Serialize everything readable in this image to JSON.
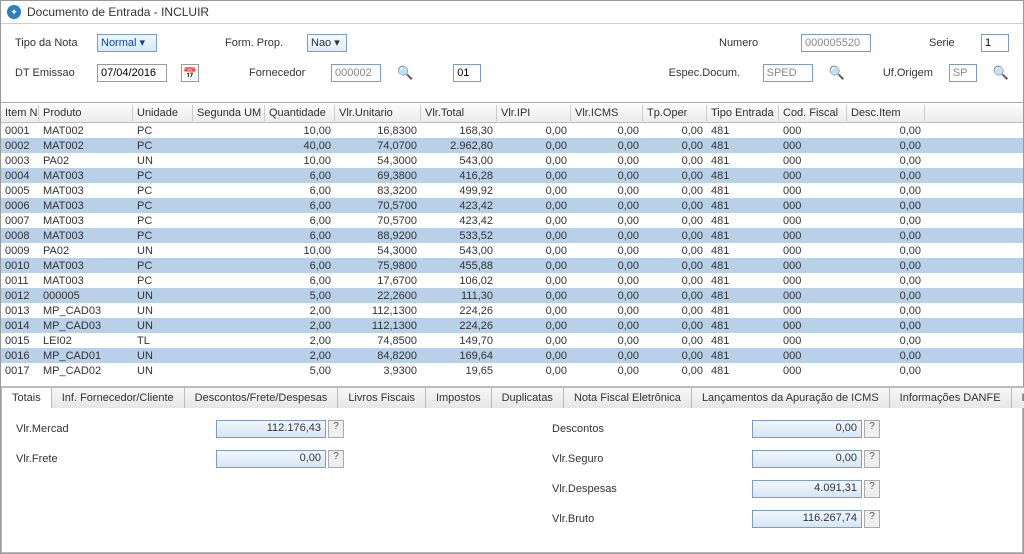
{
  "window": {
    "title": "Documento de Entrada - INCLUIR"
  },
  "form": {
    "tipoNota": {
      "label": "Tipo da Nota",
      "value": "Normal"
    },
    "formProp": {
      "label": "Form. Prop.",
      "value": "Nao"
    },
    "numero": {
      "label": "Numero",
      "value": "000005520"
    },
    "serie": {
      "label": "Serie",
      "value": "1"
    },
    "dtEmissao": {
      "label": "DT Emissao",
      "value": "07/04/2016"
    },
    "fornecedor": {
      "label": "Fornecedor",
      "value": "000002",
      "loja": "01"
    },
    "especDocum": {
      "label": "Espec.Docum.",
      "value": "SPED"
    },
    "ufOrigem": {
      "label": "Uf.Origem",
      "value": "SP"
    }
  },
  "grid": {
    "headers": [
      "Item NF",
      "Produto",
      "Unidade",
      "Segunda UM",
      "Quantidade",
      "Vlr.Unitario",
      "Vlr.Total",
      "Vlr.IPI",
      "Vlr.ICMS",
      "Tp.Oper",
      "Tipo Entrada",
      "Cod. Fiscal",
      "Desc.Item"
    ],
    "rows": [
      [
        "0001",
        "MAT002",
        "PC",
        "",
        "10,00",
        "16,8300",
        "168,30",
        "0,00",
        "0,00",
        "0,00",
        "481",
        "000",
        "0,00"
      ],
      [
        "0002",
        "MAT002",
        "PC",
        "",
        "40,00",
        "74,0700",
        "2.962,80",
        "0,00",
        "0,00",
        "0,00",
        "481",
        "000",
        "0,00"
      ],
      [
        "0003",
        "PA02",
        "UN",
        "",
        "10,00",
        "54,3000",
        "543,00",
        "0,00",
        "0,00",
        "0,00",
        "481",
        "000",
        "0,00"
      ],
      [
        "0004",
        "MAT003",
        "PC",
        "",
        "6,00",
        "69,3800",
        "416,28",
        "0,00",
        "0,00",
        "0,00",
        "481",
        "000",
        "0,00"
      ],
      [
        "0005",
        "MAT003",
        "PC",
        "",
        "6,00",
        "83,3200",
        "499,92",
        "0,00",
        "0,00",
        "0,00",
        "481",
        "000",
        "0,00"
      ],
      [
        "0006",
        "MAT003",
        "PC",
        "",
        "6,00",
        "70,5700",
        "423,42",
        "0,00",
        "0,00",
        "0,00",
        "481",
        "000",
        "0,00"
      ],
      [
        "0007",
        "MAT003",
        "PC",
        "",
        "6,00",
        "70,5700",
        "423,42",
        "0,00",
        "0,00",
        "0,00",
        "481",
        "000",
        "0,00"
      ],
      [
        "0008",
        "MAT003",
        "PC",
        "",
        "6,00",
        "88,9200",
        "533,52",
        "0,00",
        "0,00",
        "0,00",
        "481",
        "000",
        "0,00"
      ],
      [
        "0009",
        "PA02",
        "UN",
        "",
        "10,00",
        "54,3000",
        "543,00",
        "0,00",
        "0,00",
        "0,00",
        "481",
        "000",
        "0,00"
      ],
      [
        "0010",
        "MAT003",
        "PC",
        "",
        "6,00",
        "75,9800",
        "455,88",
        "0,00",
        "0,00",
        "0,00",
        "481",
        "000",
        "0,00"
      ],
      [
        "0011",
        "MAT003",
        "PC",
        "",
        "6,00",
        "17,6700",
        "106,02",
        "0,00",
        "0,00",
        "0,00",
        "481",
        "000",
        "0,00"
      ],
      [
        "0012",
        "000005",
        "UN",
        "",
        "5,00",
        "22,2600",
        "111,30",
        "0,00",
        "0,00",
        "0,00",
        "481",
        "000",
        "0,00"
      ],
      [
        "0013",
        "MP_CAD03",
        "UN",
        "",
        "2,00",
        "112,1300",
        "224,26",
        "0,00",
        "0,00",
        "0,00",
        "481",
        "000",
        "0,00"
      ],
      [
        "0014",
        "MP_CAD03",
        "UN",
        "",
        "2,00",
        "112,1300",
        "224,26",
        "0,00",
        "0,00",
        "0,00",
        "481",
        "000",
        "0,00"
      ],
      [
        "0015",
        "LEI02",
        "TL",
        "",
        "2,00",
        "74,8500",
        "149,70",
        "0,00",
        "0,00",
        "0,00",
        "481",
        "000",
        "0,00"
      ],
      [
        "0016",
        "MP_CAD01",
        "UN",
        "",
        "2,00",
        "84,8200",
        "169,64",
        "0,00",
        "0,00",
        "0,00",
        "481",
        "000",
        "0,00"
      ],
      [
        "0017",
        "MP_CAD02",
        "UN",
        "",
        "5,00",
        "3,9300",
        "19,65",
        "0,00",
        "0,00",
        "0,00",
        "481",
        "000",
        "0,00"
      ]
    ],
    "numericCols": [
      4,
      5,
      6,
      7,
      8,
      9,
      12
    ]
  },
  "tabs": [
    "Totais",
    "Inf. Fornecedor/Cliente",
    "Descontos/Frete/Despesas",
    "Livros Fiscais",
    "Impostos",
    "Duplicatas",
    "Nota Fiscal Eletrônica",
    "Lançamentos da Apuração de ICMS",
    "Informações DANFE",
    "Informações Adicionais"
  ],
  "totals": {
    "left": [
      {
        "label": "Vlr.Mercad",
        "value": "112.176,43"
      },
      {
        "label": "Vlr.Frete",
        "value": "0,00"
      }
    ],
    "right": [
      {
        "label": "Descontos",
        "value": "0,00"
      },
      {
        "label": "Vlr.Seguro",
        "value": "0,00"
      },
      {
        "label": "Vlr.Despesas",
        "value": "4.091,31"
      },
      {
        "label": "Vlr.Bruto",
        "value": "116.267,74"
      }
    ]
  }
}
